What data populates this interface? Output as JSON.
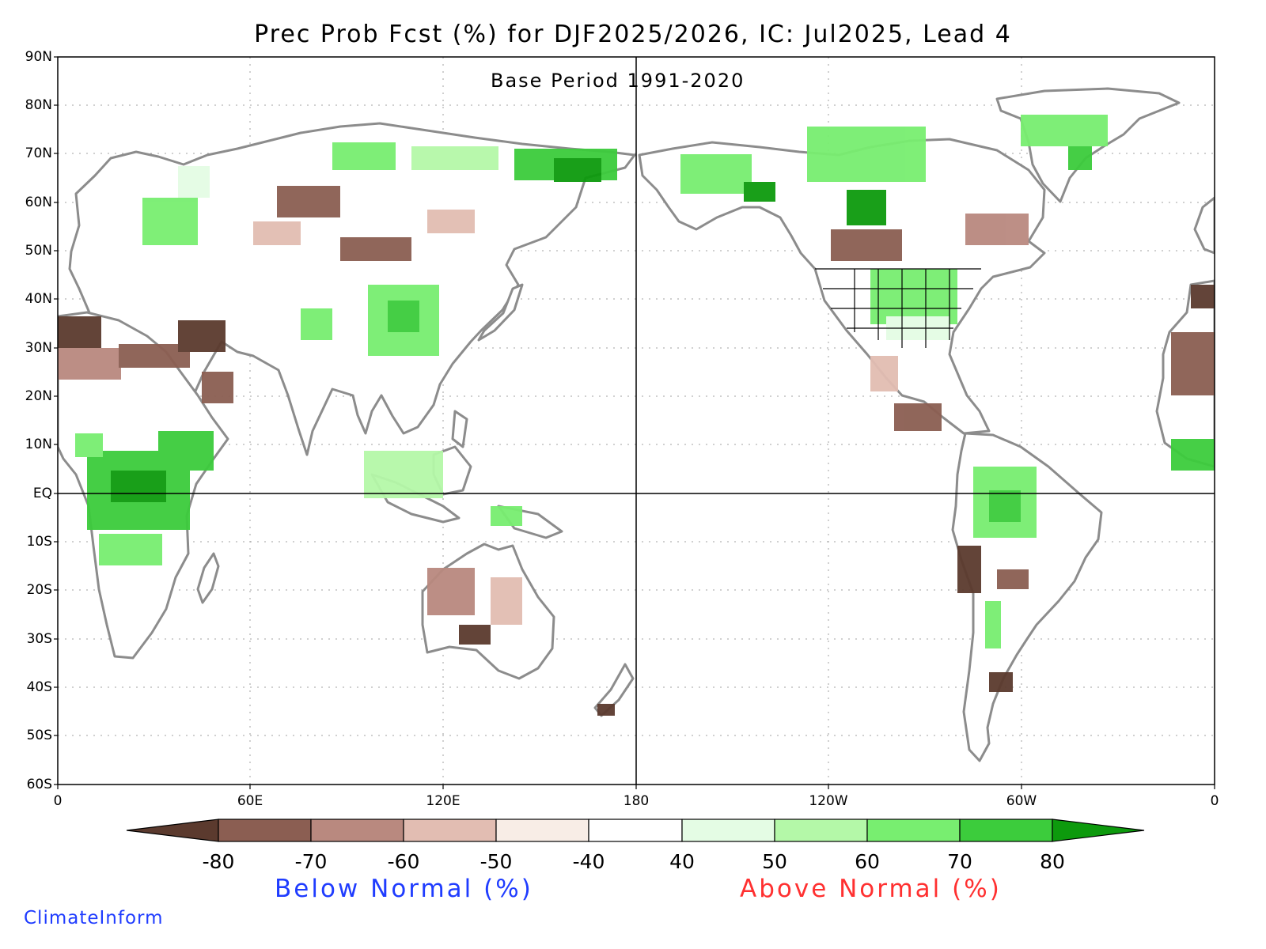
{
  "title": "Prec Prob Fcst (%) for DJF2025/2026, IC: Jul2025, Lead 4",
  "subtitle": "Base Period 1991-2020",
  "lat_labels": [
    "90N",
    "80N",
    "70N",
    "60N",
    "50N",
    "40N",
    "30N",
    "20N",
    "10N",
    "EQ",
    "10S",
    "20S",
    "30S",
    "40S",
    "50S",
    "60S"
  ],
  "lon_labels": [
    "0",
    "60E",
    "120E",
    "180",
    "120W",
    "60W",
    "0"
  ],
  "colorbar": {
    "labels": [
      "-80",
      "-70",
      "-60",
      "-50",
      "-40",
      "40",
      "50",
      "60",
      "70",
      "80"
    ],
    "colors": [
      "#5b3a2e",
      "#8b5e52",
      "#b9897f",
      "#e2bdb2",
      "#f8ede6",
      "#ffffff",
      "#e4fce4",
      "#b4f8a8",
      "#78ee70",
      "#3ccc3c",
      "#0d9a0d"
    ],
    "below_label": "Below Normal (%)",
    "above_label": "Above Normal (%)"
  },
  "credit": "ClimateInform",
  "map_colors": {
    "coast": "#8c8c8c",
    "frame": "#000000",
    "gridline": "#a0a0a0"
  }
}
